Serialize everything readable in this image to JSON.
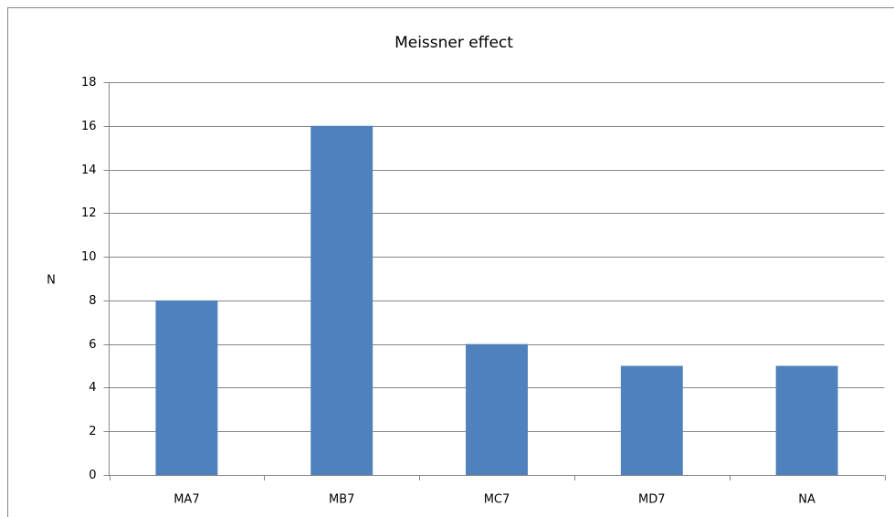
{
  "chart_data": {
    "type": "bar",
    "title": "Meissner effect",
    "y_label": "N",
    "categories": [
      "MA7",
      "MB7",
      "MC7",
      "MD7",
      "NA"
    ],
    "values": [
      8,
      16,
      6,
      5,
      5
    ],
    "color": "#4f81bd",
    "ylim": [
      0,
      18
    ],
    "yticks": [
      0,
      2,
      4,
      6,
      8,
      10,
      12,
      14,
      16,
      18
    ],
    "grid": true
  }
}
